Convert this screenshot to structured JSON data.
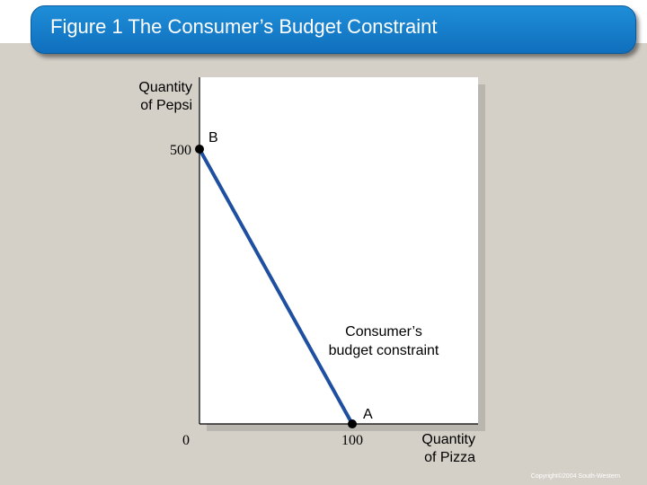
{
  "slide": {
    "title": "Figure 1 The Consumer’s Budget Constraint",
    "copyright": "Copyright©2004 South-Western"
  },
  "colors": {
    "background": "#d4d0c8",
    "title_bar": "#1878c8",
    "budget_line": "#1f4fa0",
    "plot_area": "#ffffff"
  },
  "chart_data": {
    "type": "line",
    "title": "",
    "ylabel": [
      "Quantity",
      "of Pepsi"
    ],
    "xlabel": [
      "Quantity",
      "of Pizza"
    ],
    "xlim": [
      0,
      100
    ],
    "ylim": [
      0,
      500
    ],
    "x_ticks": [
      {
        "value": 0,
        "label": "0"
      },
      {
        "value": 100,
        "label": "100"
      }
    ],
    "y_ticks": [
      {
        "value": 500,
        "label": "500"
      }
    ],
    "grid": false,
    "series": [
      {
        "name": "Consumer’s budget constraint",
        "points": [
          {
            "label": "B",
            "x": 0,
            "y": 500
          },
          {
            "label": "A",
            "x": 100,
            "y": 0
          }
        ]
      }
    ],
    "annotation": [
      "Consumer’s",
      "budget constraint"
    ]
  }
}
